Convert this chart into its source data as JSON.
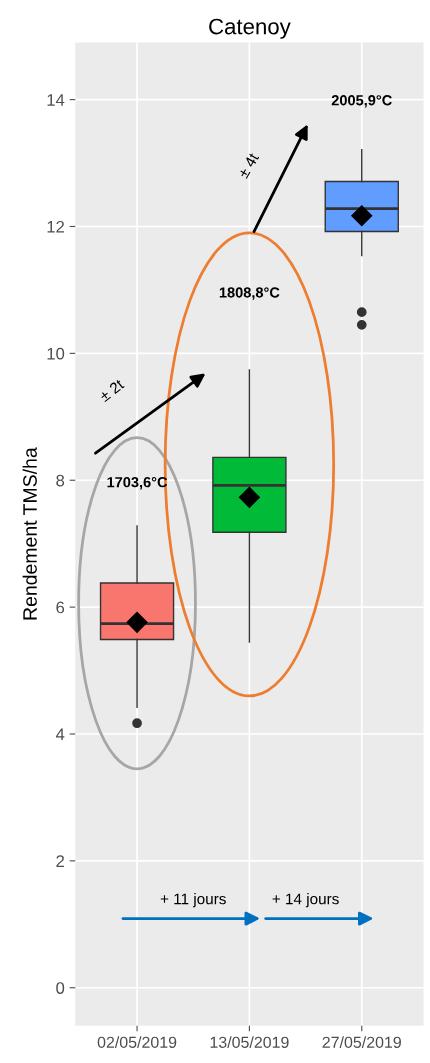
{
  "chart_data": {
    "type": "box",
    "title": "Catenoy",
    "ylabel": "Rendement TMS/ha",
    "categories": [
      "02/05/2019",
      "13/05/2019",
      "27/05/2019"
    ],
    "colors": [
      "#f8766d",
      "#00ba38",
      "#619cff"
    ],
    "boxes": [
      {
        "low": 4.42,
        "q1": 5.49,
        "median": 5.74,
        "q3": 6.38,
        "high": 7.28,
        "mean": 5.76,
        "outliers": [
          4.17
        ]
      },
      {
        "low": 5.45,
        "q1": 7.18,
        "median": 7.92,
        "q3": 8.36,
        "high": 9.74,
        "mean": 7.73
      },
      {
        "low": 11.54,
        "q1": 11.92,
        "median": 12.28,
        "q3": 12.71,
        "high": 13.21,
        "mean": 12.17,
        "outliers": [
          10.65,
          10.45
        ]
      }
    ],
    "ylim": [
      -0.6,
      14.9
    ],
    "yticks": [
      0,
      2,
      4,
      6,
      8,
      10,
      12,
      14
    ],
    "grid": true,
    "annotations": [
      "1703,6°C",
      "1808,8°C",
      "2005,9°C",
      "± 2t",
      "± 4t",
      "+ 11 jours",
      "+ 14 jours"
    ]
  }
}
